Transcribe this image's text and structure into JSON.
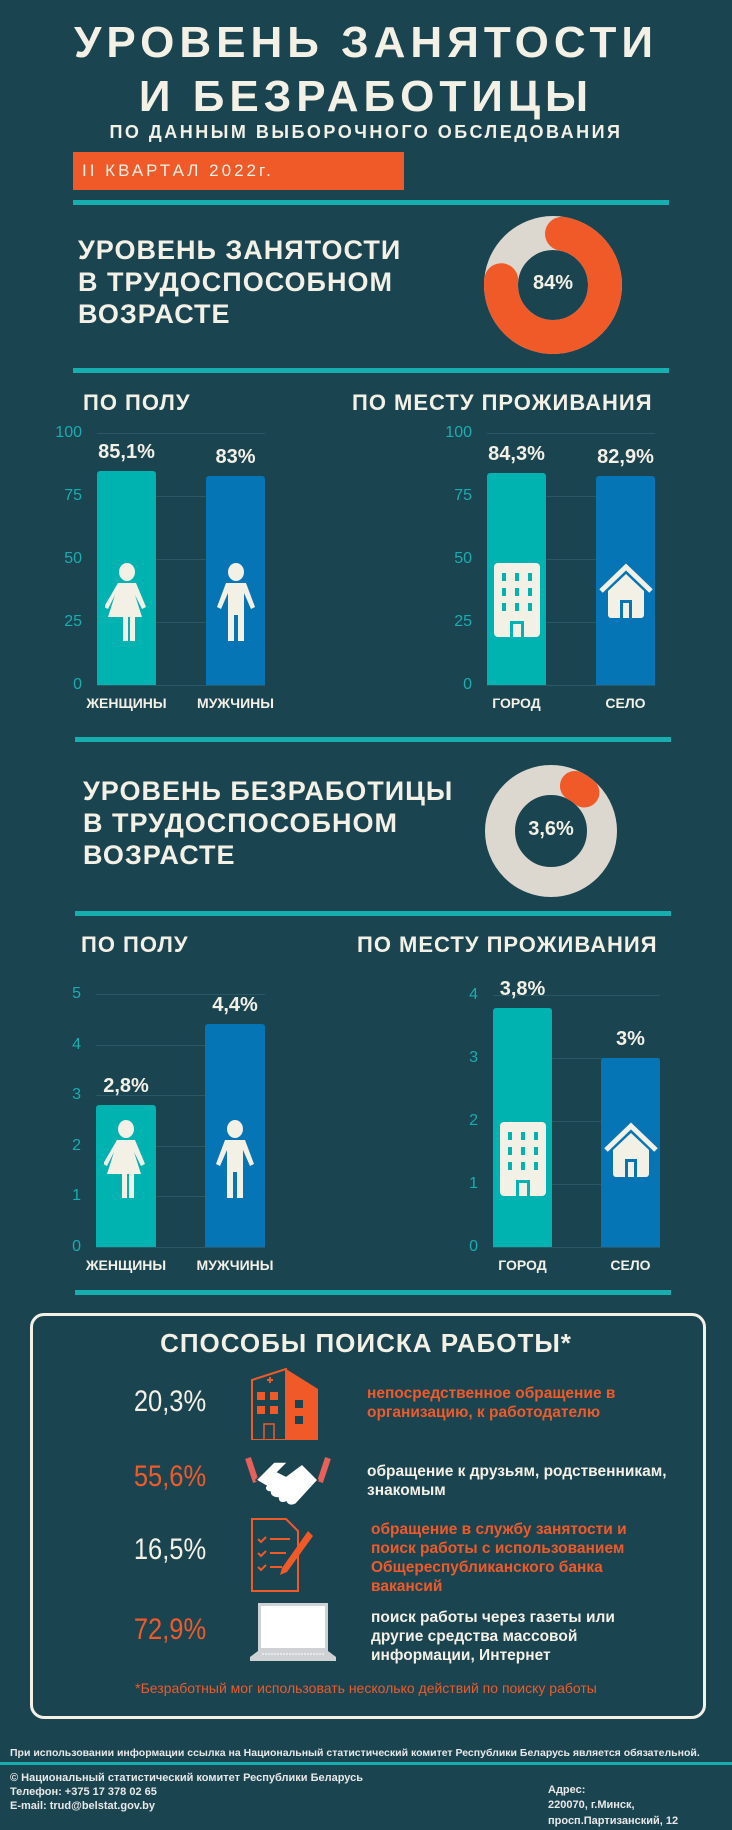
{
  "header": {
    "title_line1": "УРОВЕНЬ ЗАНЯТОСТИ",
    "title_line2": "И БЕЗРАБОТИЦЫ",
    "subtitle": "ПО ДАННЫМ ВЫБОРОЧНОГО ОБСЛЕДОВАНИЯ",
    "period": "II КВАРТАЛ 2022г."
  },
  "employment": {
    "heading": [
      "УРОВЕНЬ ЗАНЯТОСТИ",
      "В ТРУДОСПОСОБНОМ",
      "ВОЗРАСТЕ"
    ],
    "donut_label": "84%",
    "by_sex_title": "ПО ПОЛУ",
    "by_residence_title": "ПО МЕСТУ ПРОЖИВАНИЯ"
  },
  "unemployment": {
    "heading": [
      "УРОВЕНЬ БЕЗРАБОТИЦЫ",
      "В ТРУДОСПОСОБНОМ",
      "ВОЗРАСТЕ"
    ],
    "donut_label": "3,6%",
    "by_sex_title": "ПО ПОЛУ",
    "by_residence_title": "ПО МЕСТУ ПРОЖИВАНИЯ"
  },
  "colors": {
    "background": "#1b4451",
    "teal": "#00b2b0",
    "blue": "#0675b5",
    "orange": "#f05a28",
    "cream": "#f3f0e6",
    "donut_rest": "#dcd8cf"
  },
  "chart_data": [
    {
      "id": "emp-donut",
      "type": "pie",
      "title": "Уровень занятости в трудоспособном возрасте",
      "values": [
        84,
        16
      ],
      "labels": [
        "84%",
        ""
      ]
    },
    {
      "id": "emp-sex",
      "type": "bar",
      "title": "ПО ПОЛУ",
      "categories": [
        "ЖЕНЩИНЫ",
        "МУЖЧИНЫ"
      ],
      "values": [
        85.1,
        83
      ],
      "data_labels": [
        "85,1%",
        "83%"
      ],
      "ylim": [
        0,
        100
      ],
      "yticks": [
        "0",
        "25",
        "50",
        "75",
        "100"
      ],
      "icons": [
        "woman-icon",
        "man-icon"
      ],
      "grid": true
    },
    {
      "id": "emp-res",
      "type": "bar",
      "title": "ПО МЕСТУ ПРОЖИВАНИЯ",
      "categories": [
        "ГОРОД",
        "СЕЛО"
      ],
      "values": [
        84.3,
        82.9
      ],
      "data_labels": [
        "84,3%",
        "82,9%"
      ],
      "ylim": [
        0,
        100
      ],
      "yticks": [
        "0",
        "25",
        "50",
        "75",
        "100"
      ],
      "icons": [
        "building-icon",
        "house-icon"
      ],
      "grid": true
    },
    {
      "id": "unemp-donut",
      "type": "pie",
      "title": "Уровень безработицы в трудоспособном возрасте",
      "values": [
        3.6,
        96.4
      ],
      "labels": [
        "3,6%",
        ""
      ]
    },
    {
      "id": "unemp-sex",
      "type": "bar",
      "title": "ПО ПОЛУ",
      "categories": [
        "ЖЕНЩИНЫ",
        "МУЖЧИНЫ"
      ],
      "values": [
        2.8,
        4.4
      ],
      "data_labels": [
        "2,8%",
        "4,4%"
      ],
      "ylim": [
        0,
        5
      ],
      "yticks": [
        "0",
        "1",
        "2",
        "3",
        "4",
        "5"
      ],
      "icons": [
        "woman-icon",
        "man-icon"
      ],
      "grid": true
    },
    {
      "id": "unemp-res",
      "type": "bar",
      "title": "ПО МЕСТУ ПРОЖИВАНИЯ",
      "categories": [
        "ГОРОД",
        "СЕЛО"
      ],
      "values": [
        3.8,
        3.0
      ],
      "data_labels": [
        "3,8%",
        "3%"
      ],
      "ylim": [
        0,
        4
      ],
      "yticks": [
        "0",
        "1",
        "2",
        "3",
        "4"
      ],
      "icons": [
        "building-icon",
        "house-icon"
      ],
      "grid": true
    }
  ],
  "job_search": {
    "title": "СПОСОБЫ ПОИСКА РАБОТЫ*",
    "items": [
      {
        "value": "20,3%",
        "text": "непосредственное обращение в организацию, к работодателю",
        "icon": "office-building-icon",
        "highlight": true
      },
      {
        "value": "55,6%",
        "text": "обращение к друзьям, родственникам, знакомым",
        "icon": "handshake-icon",
        "highlight": false
      },
      {
        "value": "16,5%",
        "text": "обращение в службу занятости и поиск работы с использованием Общереспубликанского банка вакансий",
        "icon": "checklist-pen-icon",
        "highlight": true
      },
      {
        "value": "72,9%",
        "text": "поиск работы через газеты или другие средства массовой информации, Интернет",
        "icon": "laptop-icon",
        "highlight": false
      }
    ],
    "footnote": "*Безработный мог использовать несколько действий по поиску работы"
  },
  "footer": {
    "disclaimer": "При использовании информации ссылка на Национальный статистический комитет Республики Беларусь является обязательной.",
    "copyright": "© Национальный статистический комитет Республики Беларусь",
    "phone": "Телефон: +375 17 378 02 65",
    "email": "E-mail:  trud@belstat.gov.by",
    "address_label": "Адрес:",
    "address_line1": "220070, г.Минск,",
    "address_line2": "просп.Партизанский, 12"
  }
}
